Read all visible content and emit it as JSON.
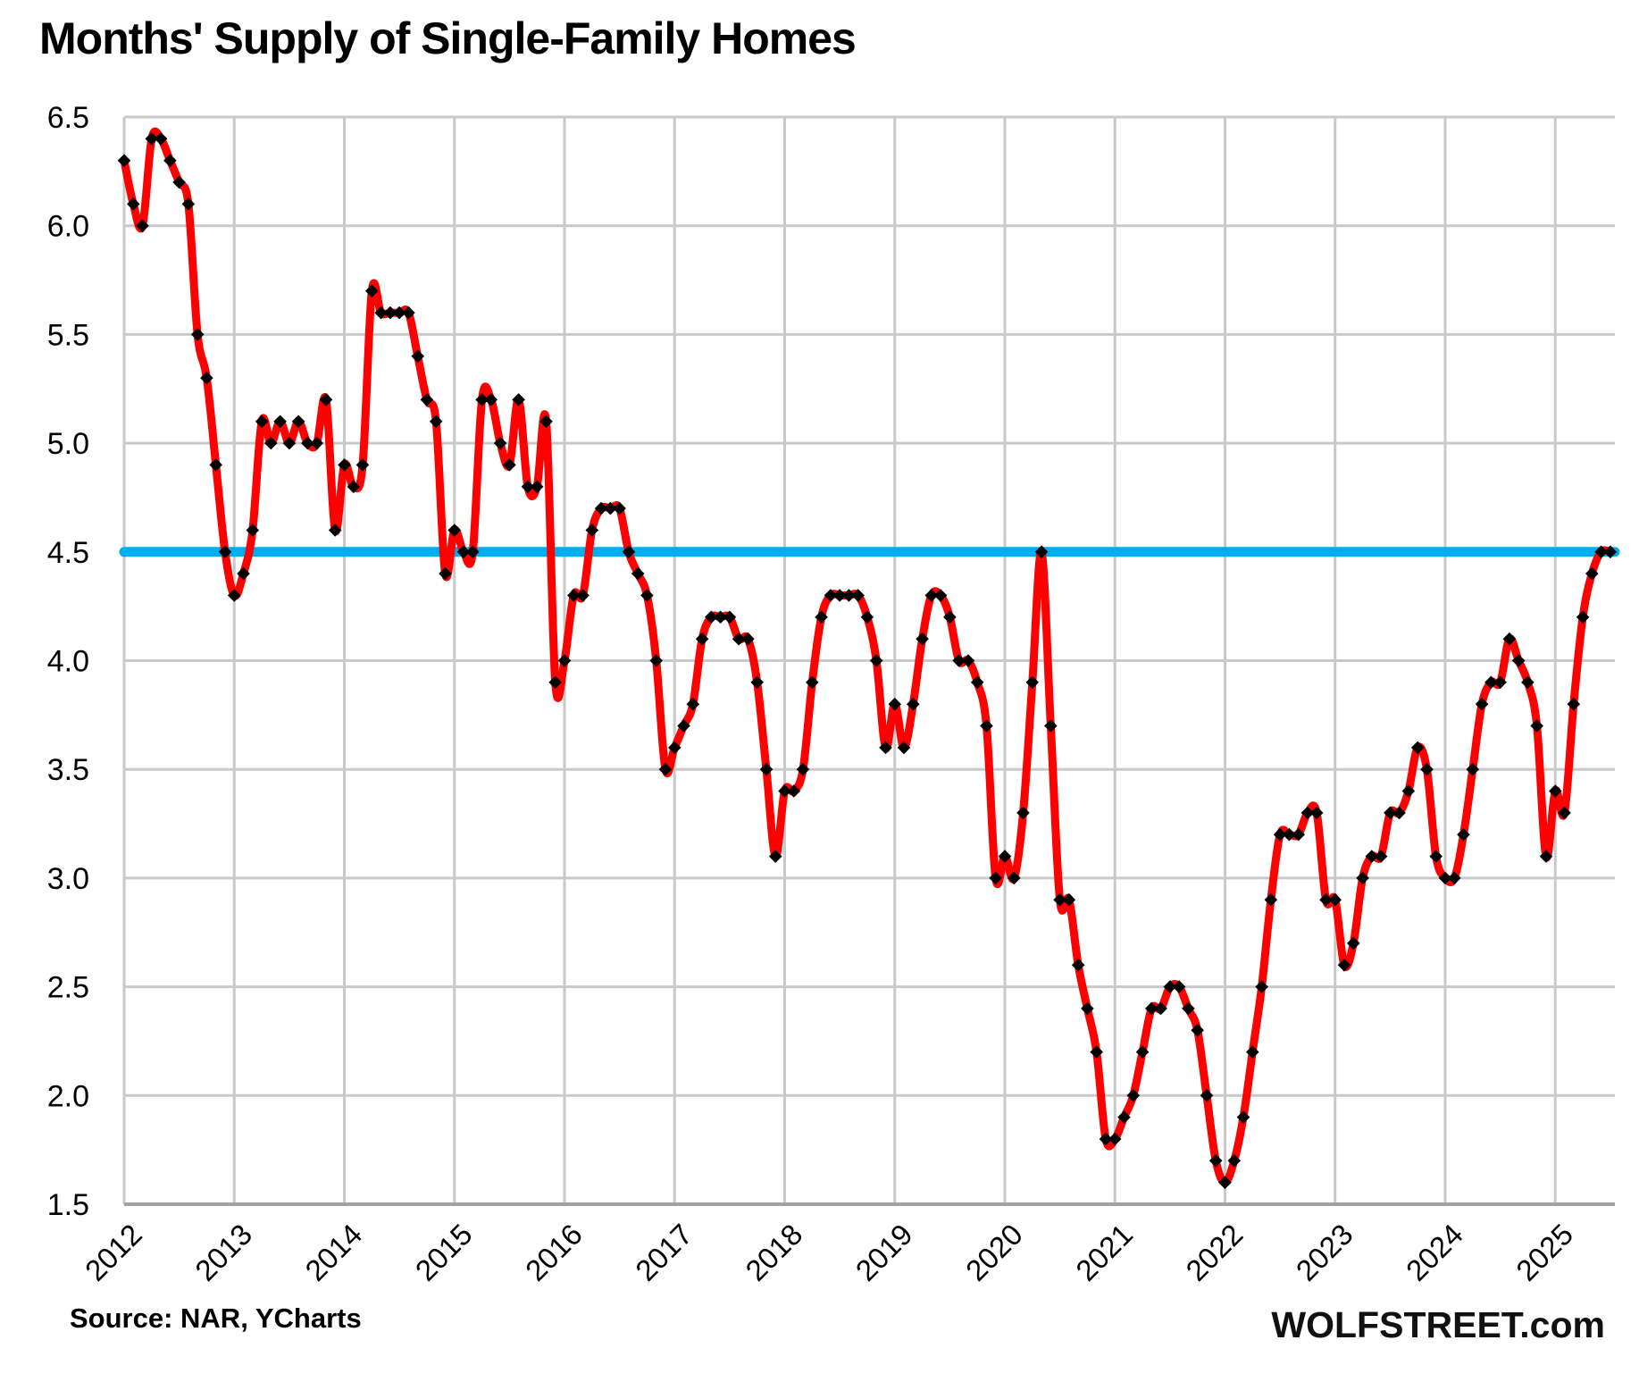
{
  "title": "Months' Supply of Single-Family Homes",
  "source_note": "Source: NAR, YCharts",
  "branding": "WOLFSTREET.com",
  "chart_data": {
    "type": "line",
    "series_name": "Months' supply of single-family homes",
    "frequency": "monthly",
    "start_month": "2012-01",
    "end_month": "2025-07",
    "values": [
      6.3,
      6.1,
      6.0,
      6.4,
      6.4,
      6.3,
      6.2,
      6.1,
      5.5,
      5.3,
      4.9,
      4.5,
      4.3,
      4.4,
      4.6,
      5.1,
      5.0,
      5.1,
      5.0,
      5.1,
      5.0,
      5.0,
      5.2,
      4.6,
      4.9,
      4.8,
      4.9,
      5.7,
      5.6,
      5.6,
      5.6,
      5.6,
      5.4,
      5.2,
      5.1,
      4.4,
      4.6,
      4.5,
      4.5,
      5.2,
      5.2,
      5.0,
      4.9,
      5.2,
      4.8,
      4.8,
      5.1,
      3.9,
      4.0,
      4.3,
      4.3,
      4.6,
      4.7,
      4.7,
      4.7,
      4.5,
      4.4,
      4.3,
      4.0,
      3.5,
      3.6,
      3.7,
      3.8,
      4.1,
      4.2,
      4.2,
      4.2,
      4.1,
      4.1,
      3.9,
      3.5,
      3.1,
      3.4,
      3.4,
      3.5,
      3.9,
      4.2,
      4.3,
      4.3,
      4.3,
      4.3,
      4.2,
      4.0,
      3.6,
      3.8,
      3.6,
      3.8,
      4.1,
      4.3,
      4.3,
      4.2,
      4.0,
      4.0,
      3.9,
      3.7,
      3.0,
      3.1,
      3.0,
      3.3,
      3.9,
      4.5,
      3.7,
      2.9,
      2.9,
      2.6,
      2.4,
      2.2,
      1.8,
      1.8,
      1.9,
      2.0,
      2.2,
      2.4,
      2.4,
      2.5,
      2.5,
      2.4,
      2.3,
      2.0,
      1.7,
      1.6,
      1.7,
      1.9,
      2.2,
      2.5,
      2.9,
      3.2,
      3.2,
      3.2,
      3.3,
      3.3,
      2.9,
      2.9,
      2.6,
      2.7,
      3.0,
      3.1,
      3.1,
      3.3,
      3.3,
      3.4,
      3.6,
      3.5,
      3.1,
      3.0,
      3.0,
      3.2,
      3.5,
      3.8,
      3.9,
      3.9,
      4.1,
      4.0,
      3.9,
      3.7,
      3.1,
      3.4,
      3.3,
      3.8,
      4.2,
      4.4,
      4.5,
      4.5
    ],
    "reference_line": {
      "value": 4.5,
      "color": "#00AEEF"
    },
    "ylim": [
      1.5,
      6.5
    ],
    "ytick_step": 0.5,
    "ytick_labels": [
      "6.5",
      "6.0",
      "5.5",
      "5.0",
      "4.5",
      "4.0",
      "3.5",
      "3.0",
      "2.5",
      "2.0",
      "1.5"
    ],
    "xtick_labels": [
      "2012",
      "2013",
      "2014",
      "2015",
      "2016",
      "2017",
      "2018",
      "2019",
      "2020",
      "2021",
      "2022",
      "2023",
      "2024",
      "2025"
    ],
    "grid": true,
    "smoothed": true,
    "line_color": "#FF0000",
    "marker": {
      "shape": "diamond",
      "color": "#000000"
    },
    "gridline_color": "#C9C9C9",
    "axis_line_color": "#A0A0A0",
    "label_color": "#000000"
  }
}
